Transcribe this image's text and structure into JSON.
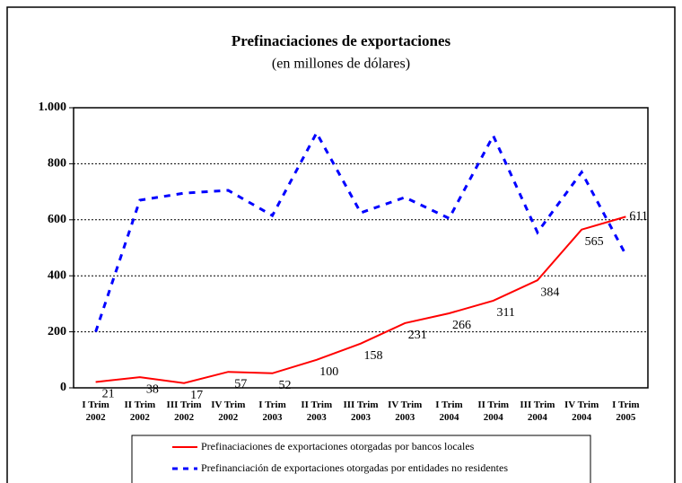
{
  "chart_data": {
    "type": "line",
    "title": "Prefinaciaciones de exportaciones",
    "subtitle": "(en millones de dólares)",
    "categories": [
      "I Trim 2002",
      "II Trim 2002",
      "III Trim 2002",
      "IV Trim 2002",
      "I Trim 2003",
      "II Trim 2003",
      "III Trim 2003",
      "IV Trim 2003",
      "I Trim 2004",
      "II Trim 2004",
      "III Trim 2004",
      "IV Trim 2004",
      "I Trim 2005"
    ],
    "series": [
      {
        "name": "Prefinaciaciones de exportaciones otorgadas por bancos locales",
        "color": "#ff0000",
        "dashed": false,
        "values": [
          21,
          38,
          17,
          57,
          52,
          100,
          158,
          231,
          266,
          311,
          384,
          565,
          611
        ]
      },
      {
        "name": "Prefinanciación de exportaciones otorgadas por entidades no residentes",
        "color": "#0000ff",
        "dashed": true,
        "values": [
          200,
          670,
          695,
          705,
          615,
          910,
          625,
          680,
          605,
          900,
          555,
          770,
          475
        ]
      }
    ],
    "ylim": [
      0,
      1000
    ],
    "yticks": [
      0,
      200,
      400,
      600,
      800,
      {
        "value": 1000,
        "label": "1.000"
      }
    ],
    "grid": true
  }
}
